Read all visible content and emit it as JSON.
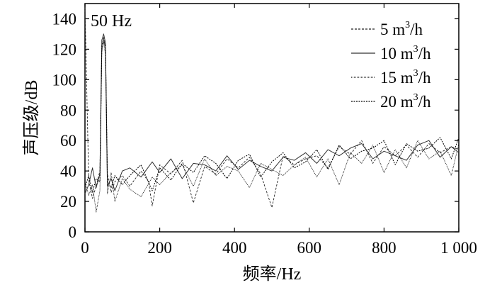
{
  "chart_data": {
    "type": "line",
    "xlabel": "频率/Hz",
    "ylabel": "声压级/dB",
    "xlim": [
      0,
      1000
    ],
    "ylim": [
      0,
      150
    ],
    "x_ticks": [
      0,
      200,
      400,
      600,
      800,
      1000
    ],
    "x_tick_labels": [
      "0",
      "200",
      "400",
      "600",
      "800",
      "1 000"
    ],
    "y_ticks": [
      0,
      20,
      40,
      60,
      80,
      100,
      120,
      140
    ],
    "y_tick_labels": [
      "0",
      "20",
      "40",
      "60",
      "80",
      "100",
      "120",
      "140"
    ],
    "grid": false,
    "legend_position": "top-right",
    "annotation": {
      "text": "50 Hz",
      "x": 50,
      "y": 130
    },
    "series": [
      {
        "name": "5 m³/h",
        "legend_base": "5 m",
        "legend_sup": "3",
        "legend_tail": "/h",
        "dash": "3,2",
        "stroke_width": 0.9,
        "color": "#222222",
        "x": [
          0,
          10,
          20,
          30,
          40,
          45,
          50,
          55,
          60,
          70,
          80,
          100,
          120,
          150,
          170,
          180,
          200,
          230,
          260,
          290,
          320,
          350,
          380,
          410,
          440,
          470,
          500,
          530,
          560,
          590,
          620,
          650,
          680,
          710,
          740,
          770,
          800,
          830,
          860,
          890,
          920,
          950,
          980,
          1000
        ],
        "y": [
          148,
          34,
          22,
          30,
          40,
          120,
          128,
          120,
          38,
          26,
          33,
          37,
          30,
          40,
          33,
          17,
          44,
          38,
          47,
          19,
          43,
          38,
          48,
          42,
          49,
          38,
          16,
          50,
          44,
          48,
          50,
          42,
          56,
          51,
          60,
          45,
          56,
          50,
          57,
          49,
          58,
          52,
          56,
          54
        ]
      },
      {
        "name": "10 m³/h",
        "legend_base": "10 m",
        "legend_sup": "3",
        "legend_tail": "/h",
        "dash": "",
        "stroke_width": 1.0,
        "color": "#333333",
        "x": [
          0,
          10,
          20,
          30,
          40,
          45,
          50,
          55,
          60,
          70,
          80,
          100,
          120,
          150,
          180,
          200,
          230,
          260,
          290,
          320,
          350,
          380,
          410,
          440,
          470,
          500,
          530,
          560,
          590,
          620,
          650,
          680,
          710,
          740,
          770,
          800,
          830,
          860,
          890,
          920,
          950,
          980,
          1000
        ],
        "y": [
          25,
          31,
          42,
          29,
          38,
          126,
          130,
          124,
          30,
          35,
          27,
          40,
          42,
          36,
          46,
          39,
          48,
          35,
          45,
          44,
          40,
          50,
          41,
          47,
          43,
          40,
          49,
          47,
          52,
          45,
          54,
          50,
          55,
          58,
          48,
          53,
          50,
          47,
          57,
          60,
          49,
          56,
          52
        ]
      },
      {
        "name": "15 m³/h",
        "legend_base": "15 m",
        "legend_sup": "3",
        "legend_tail": "/h",
        "dash": "1,1",
        "stroke_width": 0.9,
        "color": "#111111",
        "x": [
          0,
          10,
          20,
          30,
          40,
          45,
          50,
          55,
          60,
          70,
          80,
          100,
          120,
          150,
          180,
          200,
          230,
          260,
          290,
          320,
          350,
          380,
          410,
          440,
          470,
          500,
          530,
          560,
          590,
          620,
          650,
          680,
          710,
          740,
          770,
          800,
          830,
          860,
          890,
          920,
          950,
          980,
          1000
        ],
        "y": [
          33,
          24,
          31,
          13,
          27,
          118,
          125,
          116,
          25,
          39,
          20,
          35,
          28,
          23,
          36,
          31,
          39,
          44,
          30,
          48,
          37,
          43,
          40,
          29,
          45,
          41,
          37,
          44,
          49,
          36,
          48,
          31,
          52,
          45,
          57,
          39,
          54,
          42,
          60,
          48,
          53,
          37,
          58
        ]
      },
      {
        "name": "20 m³/h",
        "legend_base": "20 m",
        "legend_sup": "3",
        "legend_tail": "/h",
        "dash": "2,1.5",
        "stroke_width": 1.0,
        "color": "#000000",
        "x": [
          0,
          10,
          20,
          30,
          40,
          45,
          50,
          55,
          60,
          70,
          80,
          100,
          120,
          150,
          180,
          200,
          230,
          260,
          290,
          320,
          350,
          380,
          410,
          440,
          470,
          500,
          530,
          560,
          590,
          620,
          650,
          680,
          710,
          740,
          770,
          800,
          830,
          860,
          890,
          920,
          950,
          980,
          1000
        ],
        "y": [
          29,
          37,
          26,
          35,
          33,
          122,
          127,
          121,
          33,
          29,
          37,
          31,
          37,
          44,
          27,
          42,
          34,
          45,
          39,
          50,
          45,
          35,
          47,
          51,
          36,
          46,
          52,
          42,
          46,
          54,
          41,
          57,
          48,
          53,
          55,
          60,
          44,
          58,
          53,
          55,
          62,
          48,
          62
        ]
      }
    ]
  }
}
